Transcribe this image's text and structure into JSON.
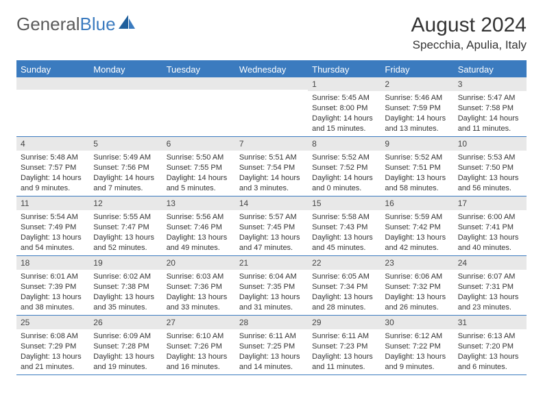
{
  "logo": {
    "text1": "General",
    "text2": "Blue"
  },
  "title": "August 2024",
  "location": "Specchia, Apulia, Italy",
  "colors": {
    "header_bg": "#3b7bbf",
    "header_text": "#ffffff",
    "daynum_bg": "#e8e8e8",
    "border": "#3b7bbf",
    "body_text": "#333333"
  },
  "day_names": [
    "Sunday",
    "Monday",
    "Tuesday",
    "Wednesday",
    "Thursday",
    "Friday",
    "Saturday"
  ],
  "weeks": [
    [
      {
        "n": "",
        "lines": []
      },
      {
        "n": "",
        "lines": []
      },
      {
        "n": "",
        "lines": []
      },
      {
        "n": "",
        "lines": []
      },
      {
        "n": "1",
        "lines": [
          "Sunrise: 5:45 AM",
          "Sunset: 8:00 PM",
          "Daylight: 14 hours and 15 minutes."
        ]
      },
      {
        "n": "2",
        "lines": [
          "Sunrise: 5:46 AM",
          "Sunset: 7:59 PM",
          "Daylight: 14 hours and 13 minutes."
        ]
      },
      {
        "n": "3",
        "lines": [
          "Sunrise: 5:47 AM",
          "Sunset: 7:58 PM",
          "Daylight: 14 hours and 11 minutes."
        ]
      }
    ],
    [
      {
        "n": "4",
        "lines": [
          "Sunrise: 5:48 AM",
          "Sunset: 7:57 PM",
          "Daylight: 14 hours and 9 minutes."
        ]
      },
      {
        "n": "5",
        "lines": [
          "Sunrise: 5:49 AM",
          "Sunset: 7:56 PM",
          "Daylight: 14 hours and 7 minutes."
        ]
      },
      {
        "n": "6",
        "lines": [
          "Sunrise: 5:50 AM",
          "Sunset: 7:55 PM",
          "Daylight: 14 hours and 5 minutes."
        ]
      },
      {
        "n": "7",
        "lines": [
          "Sunrise: 5:51 AM",
          "Sunset: 7:54 PM",
          "Daylight: 14 hours and 3 minutes."
        ]
      },
      {
        "n": "8",
        "lines": [
          "Sunrise: 5:52 AM",
          "Sunset: 7:52 PM",
          "Daylight: 14 hours and 0 minutes."
        ]
      },
      {
        "n": "9",
        "lines": [
          "Sunrise: 5:52 AM",
          "Sunset: 7:51 PM",
          "Daylight: 13 hours and 58 minutes."
        ]
      },
      {
        "n": "10",
        "lines": [
          "Sunrise: 5:53 AM",
          "Sunset: 7:50 PM",
          "Daylight: 13 hours and 56 minutes."
        ]
      }
    ],
    [
      {
        "n": "11",
        "lines": [
          "Sunrise: 5:54 AM",
          "Sunset: 7:49 PM",
          "Daylight: 13 hours and 54 minutes."
        ]
      },
      {
        "n": "12",
        "lines": [
          "Sunrise: 5:55 AM",
          "Sunset: 7:47 PM",
          "Daylight: 13 hours and 52 minutes."
        ]
      },
      {
        "n": "13",
        "lines": [
          "Sunrise: 5:56 AM",
          "Sunset: 7:46 PM",
          "Daylight: 13 hours and 49 minutes."
        ]
      },
      {
        "n": "14",
        "lines": [
          "Sunrise: 5:57 AM",
          "Sunset: 7:45 PM",
          "Daylight: 13 hours and 47 minutes."
        ]
      },
      {
        "n": "15",
        "lines": [
          "Sunrise: 5:58 AM",
          "Sunset: 7:43 PM",
          "Daylight: 13 hours and 45 minutes."
        ]
      },
      {
        "n": "16",
        "lines": [
          "Sunrise: 5:59 AM",
          "Sunset: 7:42 PM",
          "Daylight: 13 hours and 42 minutes."
        ]
      },
      {
        "n": "17",
        "lines": [
          "Sunrise: 6:00 AM",
          "Sunset: 7:41 PM",
          "Daylight: 13 hours and 40 minutes."
        ]
      }
    ],
    [
      {
        "n": "18",
        "lines": [
          "Sunrise: 6:01 AM",
          "Sunset: 7:39 PM",
          "Daylight: 13 hours and 38 minutes."
        ]
      },
      {
        "n": "19",
        "lines": [
          "Sunrise: 6:02 AM",
          "Sunset: 7:38 PM",
          "Daylight: 13 hours and 35 minutes."
        ]
      },
      {
        "n": "20",
        "lines": [
          "Sunrise: 6:03 AM",
          "Sunset: 7:36 PM",
          "Daylight: 13 hours and 33 minutes."
        ]
      },
      {
        "n": "21",
        "lines": [
          "Sunrise: 6:04 AM",
          "Sunset: 7:35 PM",
          "Daylight: 13 hours and 31 minutes."
        ]
      },
      {
        "n": "22",
        "lines": [
          "Sunrise: 6:05 AM",
          "Sunset: 7:34 PM",
          "Daylight: 13 hours and 28 minutes."
        ]
      },
      {
        "n": "23",
        "lines": [
          "Sunrise: 6:06 AM",
          "Sunset: 7:32 PM",
          "Daylight: 13 hours and 26 minutes."
        ]
      },
      {
        "n": "24",
        "lines": [
          "Sunrise: 6:07 AM",
          "Sunset: 7:31 PM",
          "Daylight: 13 hours and 23 minutes."
        ]
      }
    ],
    [
      {
        "n": "25",
        "lines": [
          "Sunrise: 6:08 AM",
          "Sunset: 7:29 PM",
          "Daylight: 13 hours and 21 minutes."
        ]
      },
      {
        "n": "26",
        "lines": [
          "Sunrise: 6:09 AM",
          "Sunset: 7:28 PM",
          "Daylight: 13 hours and 19 minutes."
        ]
      },
      {
        "n": "27",
        "lines": [
          "Sunrise: 6:10 AM",
          "Sunset: 7:26 PM",
          "Daylight: 13 hours and 16 minutes."
        ]
      },
      {
        "n": "28",
        "lines": [
          "Sunrise: 6:11 AM",
          "Sunset: 7:25 PM",
          "Daylight: 13 hours and 14 minutes."
        ]
      },
      {
        "n": "29",
        "lines": [
          "Sunrise: 6:11 AM",
          "Sunset: 7:23 PM",
          "Daylight: 13 hours and 11 minutes."
        ]
      },
      {
        "n": "30",
        "lines": [
          "Sunrise: 6:12 AM",
          "Sunset: 7:22 PM",
          "Daylight: 13 hours and 9 minutes."
        ]
      },
      {
        "n": "31",
        "lines": [
          "Sunrise: 6:13 AM",
          "Sunset: 7:20 PM",
          "Daylight: 13 hours and 6 minutes."
        ]
      }
    ]
  ]
}
